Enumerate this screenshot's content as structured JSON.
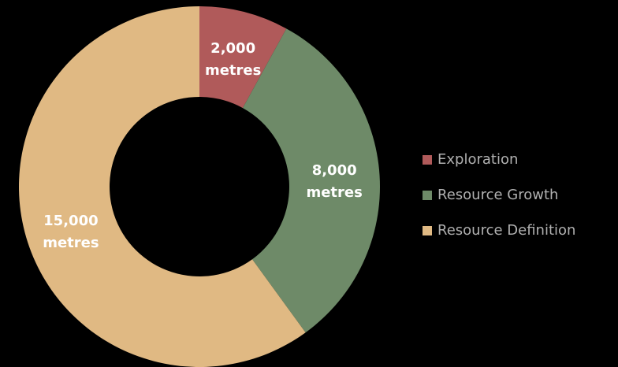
{
  "chart_data": {
    "type": "pie",
    "donut": true,
    "title": "",
    "legend_position": "right",
    "series": [
      {
        "name": "Exploration",
        "value": 2000,
        "value_label": "2,000",
        "unit": "metres",
        "color": "#b05a5a"
      },
      {
        "name": "Resource Growth",
        "value": 8000,
        "value_label": "8,000",
        "unit": "metres",
        "color": "#6e8a68"
      },
      {
        "name": "Resource Definition",
        "value": 15000,
        "value_label": "15,000",
        "unit": "metres",
        "color": "#e0b983"
      }
    ]
  }
}
